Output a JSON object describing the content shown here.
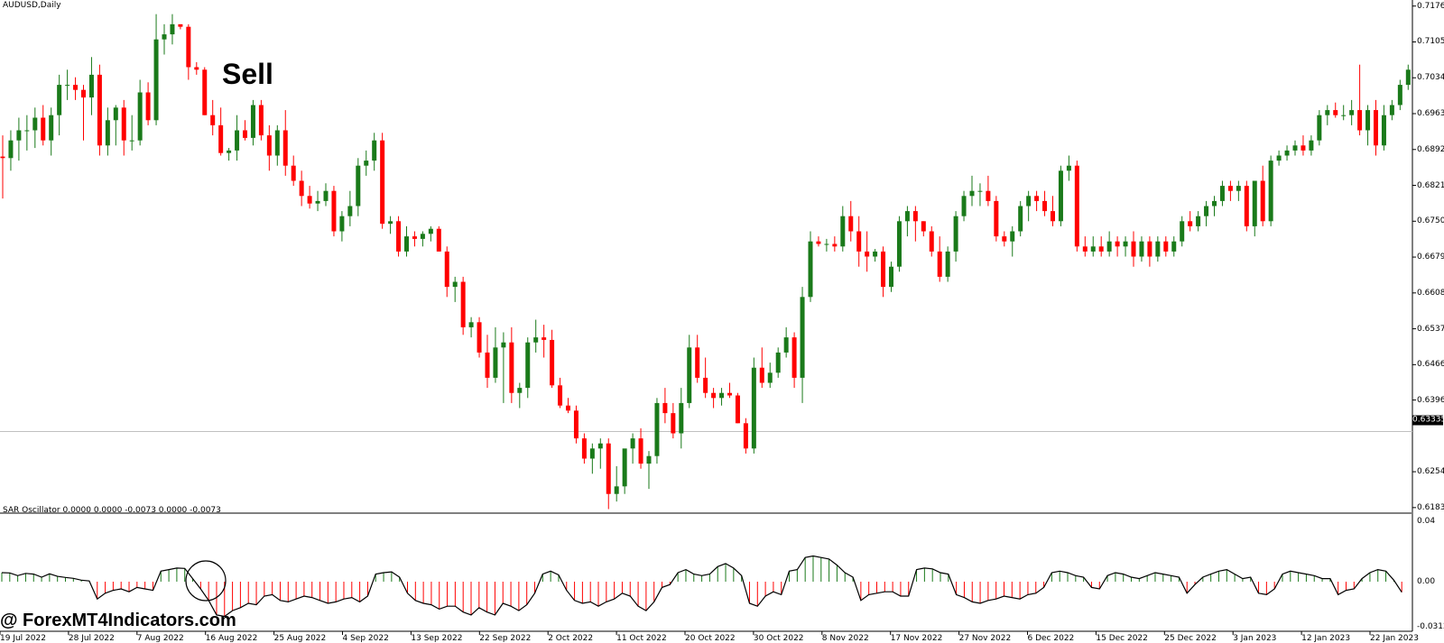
{
  "window": {
    "symbol_label": "AUDUSD,Daily",
    "sell_annotation": "Sell",
    "watermark": "@ ForexMT4Indicators.com"
  },
  "oscillator": {
    "label": "SAR Oscillator 0.0000 0.0000 -0.0073 0.0000 -0.0073",
    "axis_labels": [
      "0.04",
      "0.00",
      "-0.0312"
    ]
  },
  "price_axis": {
    "labels": [
      "0.71760",
      "0.71050",
      "0.70340",
      "0.69630",
      "0.68920",
      "0.68210",
      "0.67500",
      "0.66790",
      "0.66080",
      "0.65370",
      "0.64660",
      "0.63960",
      "0.62540",
      "0.61830"
    ],
    "current_price": "0.63335"
  },
  "date_axis": {
    "labels": [
      "19 Jul 2022",
      "28 Jul 2022",
      "7 Aug 2022",
      "16 Aug 2022",
      "25 Aug 2022",
      "4 Sep 2022",
      "13 Sep 2022",
      "22 Sep 2022",
      "2 Oct 2022",
      "11 Oct 2022",
      "20 Oct 2022",
      "30 Oct 2022",
      "8 Nov 2022",
      "17 Nov 2022",
      "27 Nov 2022",
      "6 Dec 2022",
      "15 Dec 2022",
      "25 Dec 2022",
      "3 Jan 2023",
      "12 Jan 2023",
      "22 Jan 2023"
    ]
  },
  "colors": {
    "bull": "#1a7a1a",
    "bear": "#ff0000",
    "axis": "#000000",
    "separator": "#808080",
    "price_line": "#c0c0c0"
  },
  "chart_data": {
    "type": "candlestick",
    "symbol": "AUDUSD",
    "timeframe": "Daily",
    "ylim": [
      0.6172,
      0.7188
    ],
    "ohlc": [
      [
        0.6878,
        0.692,
        0.6795,
        0.6875
      ],
      [
        0.6875,
        0.693,
        0.685,
        0.691
      ],
      [
        0.691,
        0.6955,
        0.687,
        0.693
      ],
      [
        0.693,
        0.696,
        0.689,
        0.693
      ],
      [
        0.693,
        0.6975,
        0.6895,
        0.6955
      ],
      [
        0.6955,
        0.698,
        0.69,
        0.691
      ],
      [
        0.691,
        0.6975,
        0.688,
        0.696
      ],
      [
        0.696,
        0.704,
        0.692,
        0.702
      ],
      [
        0.702,
        0.705,
        0.699,
        0.702
      ],
      [
        0.702,
        0.7035,
        0.699,
        0.701
      ],
      [
        0.701,
        0.702,
        0.691,
        0.6995
      ],
      [
        0.6995,
        0.7075,
        0.696,
        0.704
      ],
      [
        0.704,
        0.706,
        0.688,
        0.69
      ],
      [
        0.69,
        0.6975,
        0.688,
        0.695
      ],
      [
        0.695,
        0.698,
        0.69,
        0.6975
      ],
      [
        0.6975,
        0.699,
        0.688,
        0.691
      ],
      [
        0.691,
        0.696,
        0.689,
        0.691
      ],
      [
        0.691,
        0.703,
        0.69,
        0.7005
      ],
      [
        0.7005,
        0.7025,
        0.694,
        0.695
      ],
      [
        0.695,
        0.716,
        0.694,
        0.711
      ],
      [
        0.711,
        0.714,
        0.708,
        0.712
      ],
      [
        0.712,
        0.716,
        0.71,
        0.714
      ],
      [
        0.714,
        0.714,
        0.713,
        0.7135
      ],
      [
        0.7135,
        0.714,
        0.703,
        0.7055
      ],
      [
        0.7055,
        0.7065,
        0.704,
        0.705
      ],
      [
        0.705,
        0.7055,
        0.696,
        0.696
      ],
      [
        0.696,
        0.699,
        0.692,
        0.694
      ],
      [
        0.694,
        0.6975,
        0.688,
        0.6885
      ],
      [
        0.6885,
        0.6895,
        0.687,
        0.689
      ],
      [
        0.689,
        0.696,
        0.687,
        0.693
      ],
      [
        0.693,
        0.695,
        0.691,
        0.6915
      ],
      [
        0.6915,
        0.699,
        0.69,
        0.698
      ],
      [
        0.698,
        0.699,
        0.691,
        0.692
      ],
      [
        0.692,
        0.694,
        0.685,
        0.688
      ],
      [
        0.688,
        0.694,
        0.686,
        0.693
      ],
      [
        0.693,
        0.697,
        0.684,
        0.686
      ],
      [
        0.686,
        0.688,
        0.682,
        0.683
      ],
      [
        0.683,
        0.685,
        0.678,
        0.68
      ],
      [
        0.68,
        0.682,
        0.6775,
        0.6785
      ],
      [
        0.6785,
        0.681,
        0.677,
        0.679
      ],
      [
        0.679,
        0.6825,
        0.678,
        0.681
      ],
      [
        0.681,
        0.682,
        0.672,
        0.673
      ],
      [
        0.673,
        0.677,
        0.671,
        0.676
      ],
      [
        0.676,
        0.681,
        0.674,
        0.678
      ],
      [
        0.678,
        0.6875,
        0.676,
        0.686
      ],
      [
        0.686,
        0.689,
        0.684,
        0.687
      ],
      [
        0.687,
        0.6925,
        0.685,
        0.691
      ],
      [
        0.691,
        0.6925,
        0.6735,
        0.6745
      ],
      [
        0.6745,
        0.676,
        0.6725,
        0.675
      ],
      [
        0.675,
        0.676,
        0.668,
        0.669
      ],
      [
        0.669,
        0.674,
        0.668,
        0.672
      ],
      [
        0.672,
        0.673,
        0.67,
        0.6715
      ],
      [
        0.6715,
        0.673,
        0.67,
        0.6725
      ],
      [
        0.6725,
        0.674,
        0.671,
        0.6735
      ],
      [
        0.6735,
        0.674,
        0.669,
        0.669
      ],
      [
        0.669,
        0.67,
        0.66,
        0.662
      ],
      [
        0.662,
        0.664,
        0.659,
        0.663
      ],
      [
        0.663,
        0.664,
        0.6525,
        0.654
      ],
      [
        0.654,
        0.656,
        0.652,
        0.655
      ],
      [
        0.655,
        0.656,
        0.648,
        0.649
      ],
      [
        0.649,
        0.6525,
        0.642,
        0.644
      ],
      [
        0.644,
        0.654,
        0.643,
        0.65
      ],
      [
        0.65,
        0.653,
        0.639,
        0.651
      ],
      [
        0.651,
        0.654,
        0.639,
        0.641
      ],
      [
        0.641,
        0.643,
        0.638,
        0.642
      ],
      [
        0.642,
        0.652,
        0.64,
        0.651
      ],
      [
        0.651,
        0.6555,
        0.649,
        0.652
      ],
      [
        0.652,
        0.6545,
        0.648,
        0.6515
      ],
      [
        0.6515,
        0.6535,
        0.642,
        0.6425
      ],
      [
        0.6425,
        0.644,
        0.638,
        0.6385
      ],
      [
        0.6385,
        0.64,
        0.637,
        0.6375
      ],
      [
        0.6375,
        0.6385,
        0.631,
        0.632
      ],
      [
        0.632,
        0.633,
        0.627,
        0.628
      ],
      [
        0.628,
        0.631,
        0.625,
        0.63
      ],
      [
        0.63,
        0.632,
        0.626,
        0.631
      ],
      [
        0.631,
        0.632,
        0.618,
        0.621
      ],
      [
        0.621,
        0.6265,
        0.6195,
        0.6225
      ],
      [
        0.6225,
        0.629,
        0.621,
        0.63
      ],
      [
        0.63,
        0.633,
        0.627,
        0.632
      ],
      [
        0.632,
        0.634,
        0.626,
        0.627
      ],
      [
        0.627,
        0.6295,
        0.622,
        0.6285
      ],
      [
        0.6285,
        0.64,
        0.627,
        0.639
      ],
      [
        0.639,
        0.642,
        0.635,
        0.637
      ],
      [
        0.637,
        0.639,
        0.632,
        0.633
      ],
      [
        0.633,
        0.642,
        0.63,
        0.639
      ],
      [
        0.639,
        0.6525,
        0.638,
        0.65
      ],
      [
        0.65,
        0.6525,
        0.643,
        0.644
      ],
      [
        0.644,
        0.648,
        0.64,
        0.641
      ],
      [
        0.641,
        0.642,
        0.638,
        0.64
      ],
      [
        0.64,
        0.642,
        0.6385,
        0.641
      ],
      [
        0.641,
        0.643,
        0.64,
        0.6405
      ],
      [
        0.6405,
        0.641,
        0.635,
        0.635
      ],
      [
        0.635,
        0.636,
        0.629,
        0.63
      ],
      [
        0.63,
        0.648,
        0.629,
        0.646
      ],
      [
        0.646,
        0.65,
        0.642,
        0.643
      ],
      [
        0.643,
        0.647,
        0.642,
        0.645
      ],
      [
        0.645,
        0.65,
        0.644,
        0.649
      ],
      [
        0.649,
        0.654,
        0.648,
        0.652
      ],
      [
        0.652,
        0.653,
        0.642,
        0.644
      ],
      [
        0.644,
        0.662,
        0.639,
        0.66
      ],
      [
        0.66,
        0.673,
        0.659,
        0.671
      ],
      [
        0.671,
        0.672,
        0.67,
        0.6705
      ],
      [
        0.6705,
        0.6715,
        0.669,
        0.6705
      ],
      [
        0.6705,
        0.672,
        0.669,
        0.67
      ],
      [
        0.67,
        0.678,
        0.669,
        0.676
      ],
      [
        0.676,
        0.679,
        0.671,
        0.673
      ],
      [
        0.673,
        0.676,
        0.666,
        0.669
      ],
      [
        0.669,
        0.673,
        0.665,
        0.668
      ],
      [
        0.668,
        0.6695,
        0.667,
        0.669
      ],
      [
        0.669,
        0.67,
        0.66,
        0.662
      ],
      [
        0.662,
        0.667,
        0.661,
        0.666
      ],
      [
        0.666,
        0.676,
        0.665,
        0.675
      ],
      [
        0.675,
        0.678,
        0.672,
        0.677
      ],
      [
        0.677,
        0.678,
        0.671,
        0.675
      ],
      [
        0.675,
        0.675,
        0.672,
        0.673
      ],
      [
        0.673,
        0.674,
        0.668,
        0.669
      ],
      [
        0.669,
        0.672,
        0.663,
        0.664
      ],
      [
        0.664,
        0.67,
        0.663,
        0.669
      ],
      [
        0.669,
        0.677,
        0.667,
        0.676
      ],
      [
        0.676,
        0.681,
        0.675,
        0.68
      ],
      [
        0.68,
        0.684,
        0.678,
        0.681
      ],
      [
        0.681,
        0.6825,
        0.678,
        0.681
      ],
      [
        0.681,
        0.684,
        0.678,
        0.679
      ],
      [
        0.679,
        0.68,
        0.671,
        0.672
      ],
      [
        0.672,
        0.673,
        0.67,
        0.671
      ],
      [
        0.671,
        0.674,
        0.668,
        0.673
      ],
      [
        0.673,
        0.679,
        0.672,
        0.678
      ],
      [
        0.678,
        0.681,
        0.675,
        0.68
      ],
      [
        0.68,
        0.681,
        0.677,
        0.679
      ],
      [
        0.679,
        0.681,
        0.676,
        0.677
      ],
      [
        0.677,
        0.68,
        0.674,
        0.675
      ],
      [
        0.675,
        0.686,
        0.674,
        0.685
      ],
      [
        0.685,
        0.688,
        0.683,
        0.686
      ],
      [
        0.686,
        0.687,
        0.669,
        0.67
      ],
      [
        0.67,
        0.672,
        0.668,
        0.669
      ],
      [
        0.669,
        0.672,
        0.668,
        0.67
      ],
      [
        0.67,
        0.672,
        0.668,
        0.669
      ],
      [
        0.669,
        0.673,
        0.668,
        0.671
      ],
      [
        0.671,
        0.672,
        0.668,
        0.67
      ],
      [
        0.67,
        0.672,
        0.668,
        0.671
      ],
      [
        0.671,
        0.673,
        0.666,
        0.668
      ],
      [
        0.668,
        0.672,
        0.667,
        0.671
      ],
      [
        0.671,
        0.672,
        0.666,
        0.668
      ],
      [
        0.668,
        0.672,
        0.667,
        0.671
      ],
      [
        0.671,
        0.672,
        0.668,
        0.669
      ],
      [
        0.669,
        0.672,
        0.668,
        0.671
      ],
      [
        0.671,
        0.676,
        0.67,
        0.675
      ],
      [
        0.675,
        0.677,
        0.673,
        0.674
      ],
      [
        0.674,
        0.677,
        0.673,
        0.676
      ],
      [
        0.676,
        0.679,
        0.674,
        0.678
      ],
      [
        0.678,
        0.68,
        0.676,
        0.679
      ],
      [
        0.679,
        0.683,
        0.678,
        0.682
      ],
      [
        0.682,
        0.683,
        0.679,
        0.681
      ],
      [
        0.681,
        0.683,
        0.679,
        0.682
      ],
      [
        0.682,
        0.683,
        0.673,
        0.674
      ],
      [
        0.674,
        0.683,
        0.672,
        0.683
      ],
      [
        0.683,
        0.686,
        0.674,
        0.675
      ],
      [
        0.675,
        0.688,
        0.674,
        0.687
      ],
      [
        0.687,
        0.689,
        0.686,
        0.688
      ],
      [
        0.688,
        0.69,
        0.687,
        0.689
      ],
      [
        0.689,
        0.691,
        0.688,
        0.69
      ],
      [
        0.69,
        0.692,
        0.688,
        0.689
      ],
      [
        0.689,
        0.692,
        0.688,
        0.691
      ],
      [
        0.691,
        0.697,
        0.69,
        0.696
      ],
      [
        0.696,
        0.698,
        0.694,
        0.697
      ],
      [
        0.697,
        0.6985,
        0.6955,
        0.696
      ],
      [
        0.696,
        0.698,
        0.695,
        0.696
      ],
      [
        0.696,
        0.699,
        0.694,
        0.697
      ],
      [
        0.697,
        0.706,
        0.692,
        0.693
      ],
      [
        0.693,
        0.698,
        0.69,
        0.697
      ],
      [
        0.697,
        0.699,
        0.688,
        0.69
      ],
      [
        0.69,
        0.698,
        0.689,
        0.696
      ],
      [
        0.696,
        0.699,
        0.695,
        0.698
      ],
      [
        0.698,
        0.703,
        0.697,
        0.702
      ],
      [
        0.702,
        0.706,
        0.701,
        0.705
      ],
      [
        0.705,
        0.712,
        0.704,
        0.711
      ],
      [
        0.711,
        0.714,
        0.708,
        0.712
      ],
      [
        0.712,
        0.7125,
        0.707,
        0.7115
      ]
    ],
    "oscillator": {
      "name": "SAR Oscillator",
      "ylim": [
        -0.0312,
        0.04
      ],
      "values": [
        0.006,
        0.0058,
        0.004,
        0.0055,
        0.005,
        0.003,
        0.0052,
        0.0035,
        0.0028,
        0.0022,
        0.001,
        0.0005,
        -0.012,
        -0.008,
        -0.006,
        -0.005,
        -0.007,
        -0.004,
        -0.005,
        -0.006,
        0.007,
        0.008,
        0.009,
        0.0088,
        0.002,
        -0.005,
        -0.013,
        -0.023,
        -0.024,
        -0.02,
        -0.018,
        -0.015,
        -0.016,
        -0.01,
        -0.009,
        -0.013,
        -0.014,
        -0.012,
        -0.01,
        -0.011,
        -0.013,
        -0.015,
        -0.014,
        -0.012,
        -0.011,
        -0.014,
        -0.01,
        0.005,
        0.006,
        0.0065,
        0.003,
        -0.008,
        -0.013,
        -0.015,
        -0.016,
        -0.019,
        -0.017,
        -0.017,
        -0.021,
        -0.023,
        -0.018,
        -0.021,
        -0.023,
        -0.015,
        -0.017,
        -0.02,
        -0.016,
        -0.008,
        0.005,
        0.007,
        0.0045,
        -0.006,
        -0.013,
        -0.015,
        -0.014,
        -0.017,
        -0.014,
        -0.012,
        -0.008,
        -0.01,
        -0.017,
        -0.02,
        -0.014,
        -0.004,
        -0.002,
        0.006,
        0.008,
        0.005,
        0.004,
        0.005,
        0.01,
        0.012,
        0.009,
        0.004,
        -0.015,
        -0.017,
        -0.01,
        -0.007,
        -0.009,
        0.007,
        0.008,
        0.016,
        0.017,
        0.016,
        0.015,
        0.011,
        0.006,
        0.003,
        -0.013,
        -0.009,
        -0.008,
        -0.007,
        -0.007,
        -0.01,
        -0.01,
        0.008,
        0.009,
        0.0085,
        0.006,
        0.005,
        -0.009,
        -0.011,
        -0.014,
        -0.015,
        -0.013,
        -0.012,
        -0.01,
        -0.011,
        -0.012,
        -0.009,
        -0.008,
        -0.004,
        0.006,
        0.007,
        0.006,
        0.004,
        0.003,
        -0.004,
        -0.005,
        0.004,
        0.006,
        0.005,
        0.003,
        0.002,
        0.004,
        0.006,
        0.005,
        0.004,
        0.003,
        -0.008,
        -0.002,
        0.003,
        0.005,
        0.007,
        0.008,
        0.005,
        0.002,
        0.003,
        -0.008,
        -0.009,
        -0.005,
        0.005,
        0.007,
        0.006,
        0.005,
        0.004,
        0.002,
        0.002,
        -0.009,
        -0.006,
        -0.005,
        0.002,
        0.006,
        0.008,
        0.007,
        0.001,
        -0.0073
      ]
    }
  }
}
